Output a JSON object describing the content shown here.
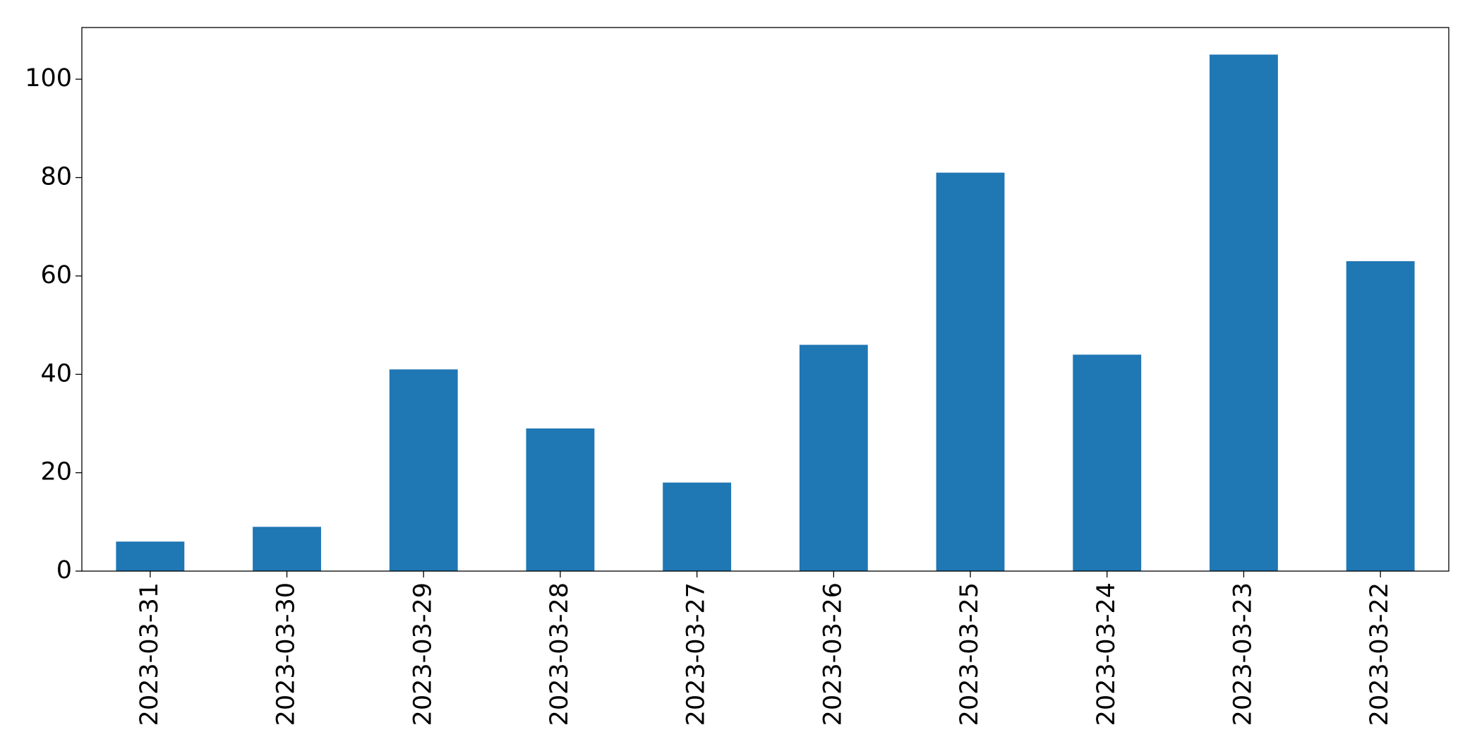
{
  "chart_data": {
    "type": "bar",
    "categories": [
      "2023-03-31",
      "2023-03-30",
      "2023-03-29",
      "2023-03-28",
      "2023-03-27",
      "2023-03-26",
      "2023-03-25",
      "2023-03-24",
      "2023-03-23",
      "2023-03-22"
    ],
    "values": [
      6,
      9,
      41,
      29,
      18,
      46,
      81,
      44,
      105,
      63
    ],
    "color": "#1f77b4",
    "ylim": [
      0,
      110.5
    ],
    "yticks": [
      0,
      20,
      40,
      60,
      80,
      100
    ],
    "grid": false
  }
}
